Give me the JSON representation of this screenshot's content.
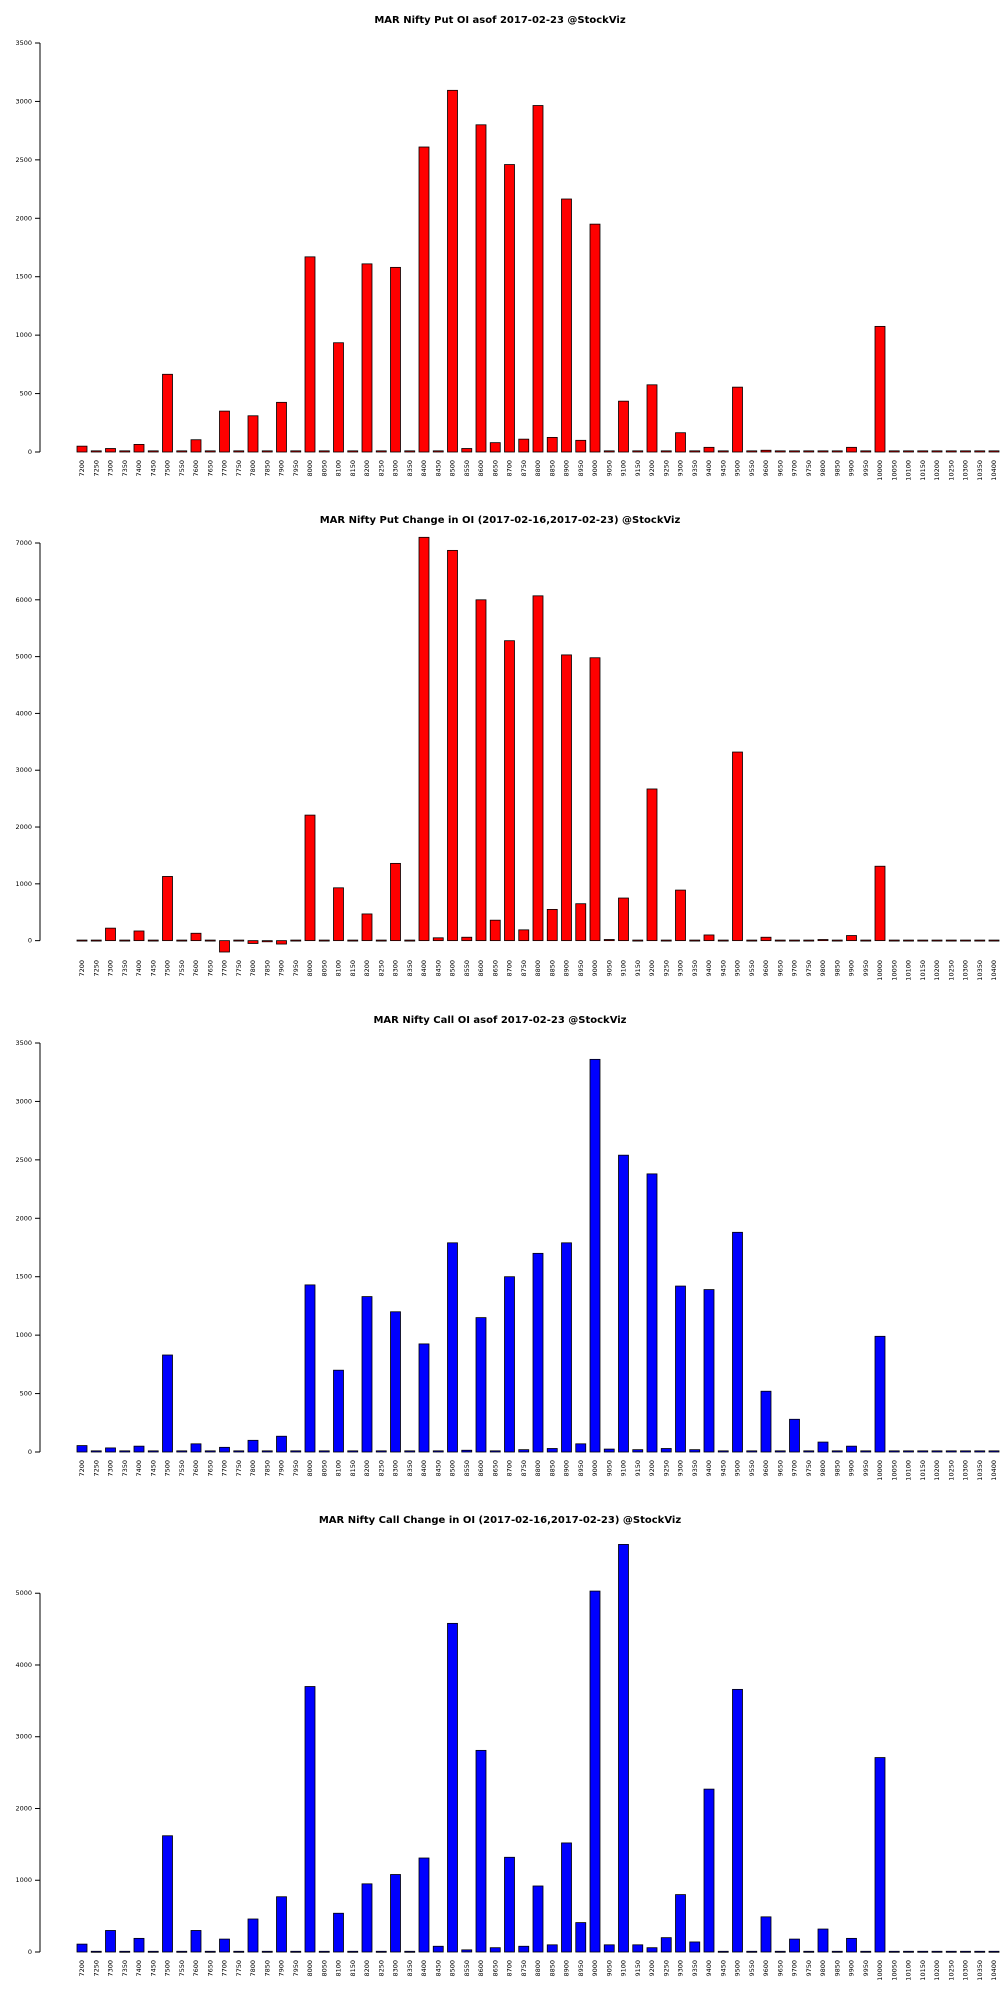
{
  "chart_data": [
    {
      "type": "bar",
      "title": "MAR Nifty Put OI asof 2017-02-23 @StockViz",
      "color": "#ff0000",
      "categories": [
        "7200",
        "7250",
        "7300",
        "7350",
        "7400",
        "7450",
        "7500",
        "7550",
        "7600",
        "7650",
        "7700",
        "7750",
        "7800",
        "7850",
        "7900",
        "7950",
        "8000",
        "8050",
        "8100",
        "8150",
        "8200",
        "8250",
        "8300",
        "8350",
        "8400",
        "8450",
        "8500",
        "8550",
        "8600",
        "8650",
        "8700",
        "8750",
        "8800",
        "8850",
        "8900",
        "8950",
        "9000",
        "9050",
        "9100",
        "9150",
        "9200",
        "9250",
        "9300",
        "9350",
        "9400",
        "9450",
        "9500",
        "9550",
        "9600",
        "9650",
        "9700",
        "9750",
        "9800",
        "9850",
        "9900",
        "9950",
        "10000",
        "10050",
        "10100",
        "10150",
        "10200",
        "10250",
        "10300",
        "10350",
        "10400"
      ],
      "values": [
        50,
        10,
        30,
        10,
        65,
        10,
        665,
        10,
        105,
        10,
        350,
        10,
        310,
        10,
        425,
        10,
        1670,
        10,
        935,
        10,
        1610,
        10,
        1580,
        10,
        2610,
        10,
        3095,
        30,
        2800,
        80,
        2460,
        110,
        2965,
        125,
        2165,
        100,
        1950,
        10,
        435,
        10,
        575,
        10,
        165,
        10,
        40,
        10,
        555,
        10,
        15,
        10,
        10,
        10,
        10,
        10,
        40,
        10,
        1075,
        10,
        10,
        10,
        10,
        10,
        10,
        10,
        10
      ],
      "yticks": [
        0,
        500,
        1000,
        1500,
        2000,
        2500,
        3000,
        3500
      ],
      "ylim": [
        0,
        3500
      ],
      "xlabel": "",
      "ylabel": "",
      "grid": false
    },
    {
      "type": "bar",
      "title": "MAR Nifty Put Change in OI (2017-02-16,2017-02-23) @StockViz",
      "color": "#ff0000",
      "categories": [
        "7200",
        "7250",
        "7300",
        "7350",
        "7400",
        "7450",
        "7500",
        "7550",
        "7600",
        "7650",
        "7700",
        "7750",
        "7800",
        "7850",
        "7900",
        "7950",
        "8000",
        "8050",
        "8100",
        "8150",
        "8200",
        "8250",
        "8300",
        "8350",
        "8400",
        "8450",
        "8500",
        "8550",
        "8600",
        "8650",
        "8700",
        "8750",
        "8800",
        "8850",
        "8900",
        "8950",
        "9000",
        "9050",
        "9100",
        "9150",
        "9200",
        "9250",
        "9300",
        "9350",
        "9400",
        "9450",
        "9500",
        "9550",
        "9600",
        "9650",
        "9700",
        "9750",
        "9800",
        "9850",
        "9900",
        "9950",
        "10000",
        "10050",
        "10100",
        "10150",
        "10200",
        "10250",
        "10300",
        "10350",
        "10400"
      ],
      "values": [
        10,
        10,
        220,
        10,
        170,
        10,
        1130,
        10,
        130,
        10,
        -200,
        10,
        -50,
        -20,
        -60,
        10,
        2210,
        10,
        930,
        10,
        470,
        10,
        1360,
        10,
        7100,
        50,
        6870,
        60,
        6000,
        360,
        5280,
        190,
        6070,
        550,
        5030,
        650,
        4980,
        20,
        750,
        10,
        2670,
        10,
        890,
        10,
        100,
        10,
        3320,
        10,
        60,
        10,
        10,
        10,
        20,
        10,
        90,
        10,
        1310,
        10,
        10,
        10,
        10,
        10,
        10,
        10,
        10
      ],
      "yticks": [
        0,
        1000,
        2000,
        3000,
        4000,
        5000,
        6000,
        7000
      ],
      "ylim": [
        -200,
        7000
      ],
      "xlabel": "",
      "ylabel": "",
      "grid": false
    },
    {
      "type": "bar",
      "title": "MAR Nifty Call OI asof 2017-02-23 @StockViz",
      "color": "#0000ff",
      "categories": [
        "7200",
        "7250",
        "7300",
        "7350",
        "7400",
        "7450",
        "7500",
        "7550",
        "7600",
        "7650",
        "7700",
        "7750",
        "7800",
        "7850",
        "7900",
        "7950",
        "8000",
        "8050",
        "8100",
        "8150",
        "8200",
        "8250",
        "8300",
        "8350",
        "8400",
        "8450",
        "8500",
        "8550",
        "8600",
        "8650",
        "8700",
        "8750",
        "8800",
        "8850",
        "8900",
        "8950",
        "9000",
        "9050",
        "9100",
        "9150",
        "9200",
        "9250",
        "9300",
        "9350",
        "9400",
        "9450",
        "9500",
        "9550",
        "9600",
        "9650",
        "9700",
        "9750",
        "9800",
        "9850",
        "9900",
        "9950",
        "10000",
        "10050",
        "10100",
        "10150",
        "10200",
        "10250",
        "10300",
        "10350",
        "10400"
      ],
      "values": [
        55,
        10,
        35,
        10,
        50,
        10,
        830,
        10,
        70,
        10,
        40,
        10,
        100,
        10,
        135,
        10,
        1430,
        10,
        700,
        10,
        1330,
        10,
        1200,
        10,
        925,
        10,
        1790,
        15,
        1150,
        10,
        1500,
        20,
        1700,
        30,
        1790,
        70,
        3360,
        25,
        2540,
        20,
        2380,
        30,
        1420,
        20,
        1390,
        10,
        1880,
        10,
        520,
        10,
        280,
        10,
        85,
        10,
        50,
        10,
        990,
        10,
        10,
        10,
        10,
        10,
        10,
        10,
        10
      ],
      "yticks": [
        0,
        500,
        1000,
        1500,
        2000,
        2500,
        3000,
        3500
      ],
      "ylim": [
        0,
        3500
      ],
      "xlabel": "",
      "ylabel": "",
      "grid": false
    },
    {
      "type": "bar",
      "title": "MAR Nifty Call Change in OI (2017-02-16,2017-02-23) @StockViz",
      "color": "#0000ff",
      "categories": [
        "7200",
        "7250",
        "7300",
        "7350",
        "7400",
        "7450",
        "7500",
        "7550",
        "7600",
        "7650",
        "7700",
        "7750",
        "7800",
        "7850",
        "7900",
        "7950",
        "8000",
        "8050",
        "8100",
        "8150",
        "8200",
        "8250",
        "8300",
        "8350",
        "8400",
        "8450",
        "8500",
        "8550",
        "8600",
        "8650",
        "8700",
        "8750",
        "8800",
        "8850",
        "8900",
        "8950",
        "9000",
        "9050",
        "9100",
        "9150",
        "9200",
        "9250",
        "9300",
        "9350",
        "9400",
        "9450",
        "9500",
        "9550",
        "9600",
        "9650",
        "9700",
        "9750",
        "9800",
        "9850",
        "9900",
        "9950",
        "10000",
        "10050",
        "10100",
        "10150",
        "10200",
        "10250",
        "10300",
        "10350",
        "10400"
      ],
      "values": [
        110,
        10,
        300,
        10,
        190,
        10,
        1620,
        10,
        300,
        10,
        180,
        10,
        460,
        10,
        770,
        10,
        3700,
        10,
        540,
        10,
        950,
        10,
        1080,
        10,
        1310,
        80,
        4580,
        30,
        2810,
        60,
        1320,
        80,
        920,
        100,
        1520,
        410,
        5030,
        100,
        5680,
        100,
        60,
        200,
        800,
        140,
        2270,
        10,
        3660,
        10,
        490,
        10,
        180,
        10,
        320,
        10,
        190,
        10,
        2710,
        10,
        10,
        10,
        10,
        10,
        10,
        10,
        10
      ],
      "yticks": [
        0,
        1000,
        2000,
        3000,
        4000,
        5000
      ],
      "ylim": [
        0,
        5700
      ],
      "xlabel": "",
      "ylabel": "",
      "grid": false
    }
  ]
}
